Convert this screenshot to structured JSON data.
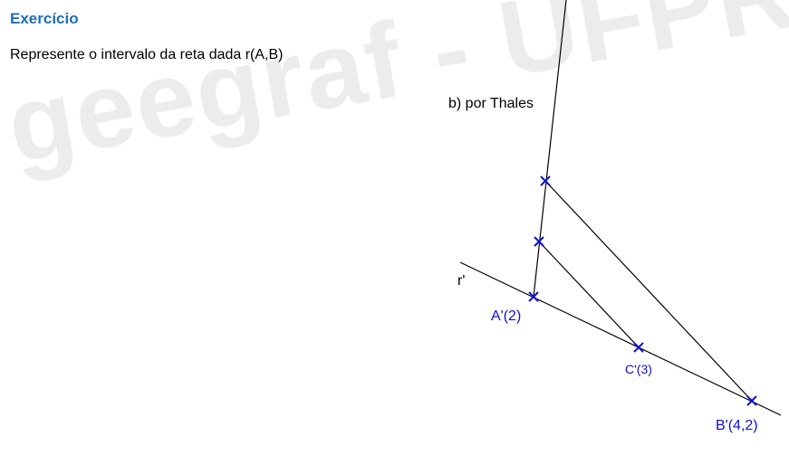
{
  "header": {
    "title": "Exercício",
    "instruction": "Represente o intervalo da reta dada r(A,B)"
  },
  "watermark": {
    "text": "geegraf - UFPR",
    "color": "#ececec"
  },
  "figure": {
    "method_label": "b) por Thales",
    "line_label": "r'",
    "points": {
      "a": "A'(2)",
      "c": "C'(3)",
      "b": "B'(4,2)"
    },
    "colors": {
      "lines": "#000000",
      "points": "#1010d0"
    }
  }
}
